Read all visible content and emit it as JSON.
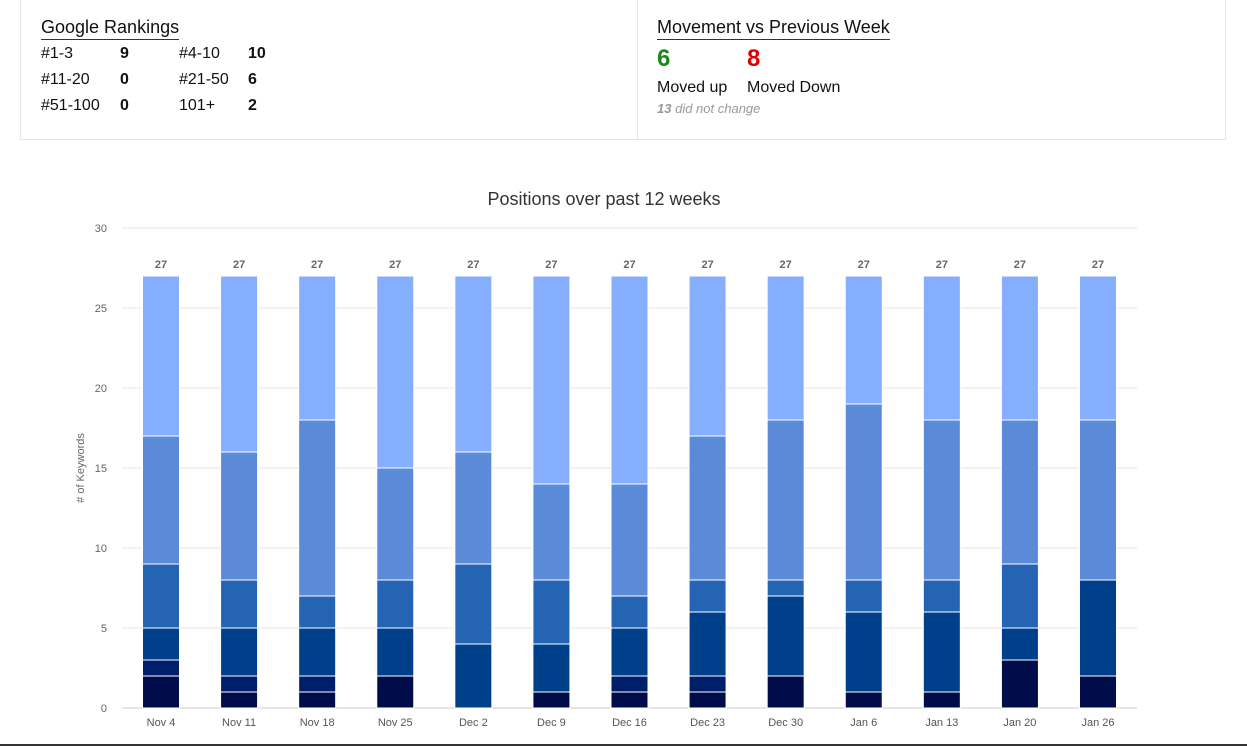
{
  "rankings": {
    "title": "Google Rankings",
    "rows": [
      [
        {
          "label": "#1-3",
          "value": "9"
        },
        {
          "label": "#4-10",
          "value": "10"
        }
      ],
      [
        {
          "label": "#11-20",
          "value": "0"
        },
        {
          "label": "#21-50",
          "value": "6"
        }
      ],
      [
        {
          "label": "#51-100",
          "value": "0"
        },
        {
          "label": "101+",
          "value": "2"
        }
      ]
    ]
  },
  "movement": {
    "title": "Movement vs Previous Week",
    "up_value": "6",
    "up_label": "Moved up",
    "down_value": "8",
    "down_label": "Moved Down",
    "no_change_count": "13",
    "no_change_text": "did not change",
    "up_color": "#1a8a1a",
    "down_color": "#e00000"
  },
  "chart_data": {
    "type": "bar",
    "stacked": true,
    "title": "Positions over past 12 weeks",
    "ylabel": "# of Keywords",
    "xlabel": "",
    "ylim": [
      0,
      30
    ],
    "yticks": [
      0,
      5,
      10,
      15,
      20,
      25,
      30
    ],
    "grid": true,
    "categories": [
      "Nov 4",
      "Nov 11",
      "Nov 18",
      "Nov 25",
      "Dec 2",
      "Dec 9",
      "Dec 16",
      "Dec 23",
      "Dec 30",
      "Jan 6",
      "Jan 13",
      "Jan 20",
      "Jan 26"
    ],
    "totals": [
      27,
      27,
      27,
      27,
      27,
      27,
      27,
      27,
      27,
      27,
      27,
      27,
      27
    ],
    "series": [
      {
        "color": "#000d4a",
        "values": [
          2,
          1,
          1,
          2,
          0,
          1,
          1,
          1,
          2,
          1,
          1,
          3,
          2
        ]
      },
      {
        "color": "#001f6b",
        "values": [
          1,
          1,
          1,
          0,
          0,
          0,
          1,
          1,
          0,
          0,
          0,
          0,
          0
        ]
      },
      {
        "color": "#003f8a",
        "values": [
          2,
          3,
          3,
          3,
          4,
          3,
          3,
          4,
          5,
          5,
          5,
          2,
          6
        ]
      },
      {
        "color": "#2464b3",
        "values": [
          4,
          3,
          2,
          3,
          5,
          4,
          2,
          2,
          1,
          2,
          2,
          4,
          0
        ]
      },
      {
        "color": "#5b8ad9",
        "values": [
          8,
          8,
          11,
          7,
          7,
          6,
          7,
          9,
          10,
          11,
          10,
          9,
          10
        ]
      },
      {
        "color": "#85aeff",
        "values": [
          10,
          11,
          9,
          12,
          11,
          13,
          13,
          10,
          9,
          8,
          9,
          9,
          9
        ]
      }
    ]
  }
}
